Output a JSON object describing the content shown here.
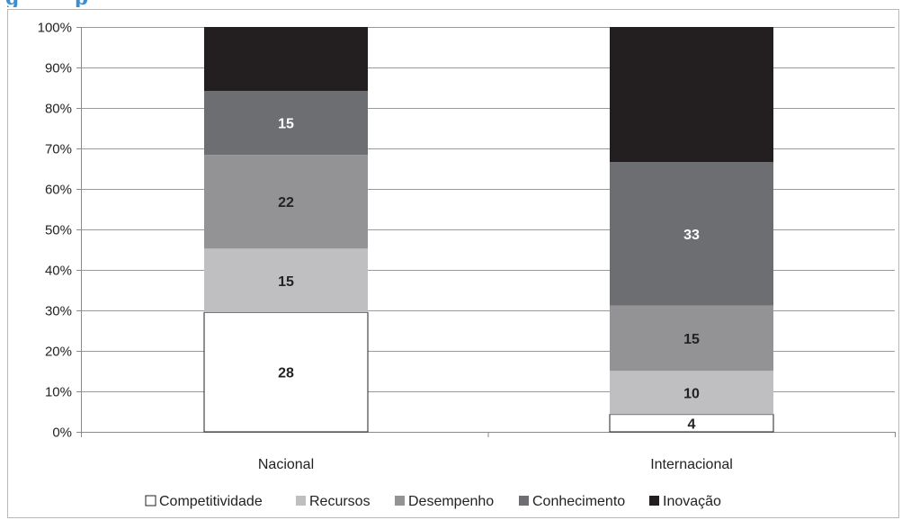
{
  "chart_data": {
    "type": "bar",
    "stacked": "percent",
    "categories": [
      "Nacional",
      "Internacional"
    ],
    "series": [
      {
        "name": "Competitividade",
        "values": [
          28,
          4
        ],
        "color": "#ffffff",
        "label_color": "#222222",
        "show_labels": [
          true,
          true
        ]
      },
      {
        "name": "Recursos",
        "values": [
          15,
          10
        ],
        "color": "#bfbfc1",
        "label_color": "#222222",
        "show_labels": [
          true,
          true
        ]
      },
      {
        "name": "Desempenho",
        "values": [
          22,
          15
        ],
        "color": "#939396",
        "label_color": "#222222",
        "show_labels": [
          true,
          true
        ]
      },
      {
        "name": "Conhecimento",
        "values": [
          15,
          33
        ],
        "color": "#6d6e71",
        "label_color": "#ffffff",
        "show_labels": [
          true,
          true
        ]
      },
      {
        "name": "Inovação",
        "values": [
          15,
          31
        ],
        "color": "#231f20",
        "label_color": "#ffffff",
        "show_labels": [
          false,
          false
        ]
      }
    ],
    "y_ticks": [
      "0%",
      "10%",
      "20%",
      "30%",
      "40%",
      "50%",
      "60%",
      "70%",
      "80%",
      "90%",
      "100%"
    ],
    "ylim": [
      0,
      100
    ],
    "grid": true,
    "legend": "bottom",
    "gridline_color": "#9a9a9a",
    "title": "",
    "xlabel": "",
    "ylabel": ""
  }
}
